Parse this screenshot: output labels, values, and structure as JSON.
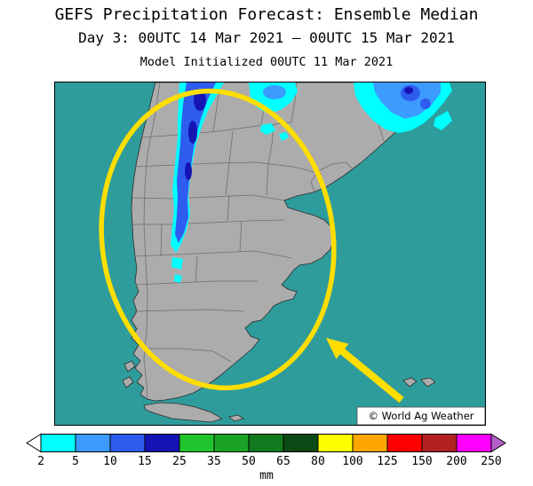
{
  "header": {
    "title": "GEFS Precipitation Forecast: Ensemble Median",
    "subtitle": "Day 3: 00UTC 14 Mar 2021 – 00UTC 15 Mar 2021",
    "init_line": "Model Initialized 00UTC 11 Mar 2021"
  },
  "map": {
    "region": "Southern South America",
    "watermark": "© World Ag Weather",
    "annotations": {
      "ellipse": "yellow highlight ellipse over central Argentina",
      "arrow": "yellow arrow pointing at highlighted region"
    }
  },
  "colors": {
    "ocean": "#2F9C9C",
    "land": "#ACACAC",
    "admin_border": "#6E6E6E",
    "annotation": "#FFDE00",
    "precip_light": "#00FFFF",
    "precip_moderate": "#3B9BFF",
    "precip_heavy": "#2E5CEF",
    "precip_intense": "#1414B4"
  },
  "colorbar": {
    "unit": "mm",
    "tick_labels": [
      "2",
      "5",
      "10",
      "15",
      "25",
      "35",
      "50",
      "65",
      "80",
      "100",
      "125",
      "150",
      "200",
      "250"
    ],
    "cell_colors": [
      "#00FFFF",
      "#3B9BFF",
      "#2E5CEF",
      "#1414B4",
      "#22C42E",
      "#1AA226",
      "#127A1E",
      "#0B4A14",
      "#FFFF00",
      "#FFA500",
      "#FF0000",
      "#B22222",
      "#FF00FF"
    ],
    "under_color": "#FFFFFF",
    "over_color": "#B45FC8"
  }
}
